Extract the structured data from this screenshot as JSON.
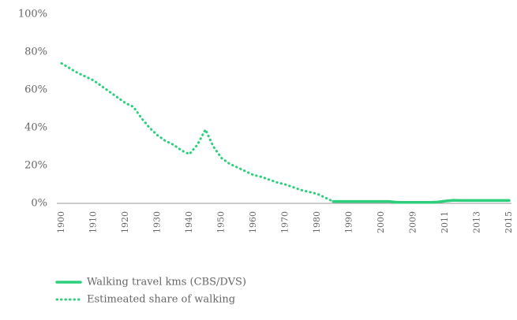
{
  "chart_data": {
    "type": "line",
    "categories": [
      "1900",
      null,
      null,
      null,
      "1910",
      null,
      null,
      null,
      "1920",
      null,
      null,
      null,
      "1930",
      null,
      null,
      null,
      "1940",
      null,
      null,
      null,
      "1950",
      null,
      null,
      null,
      "1960",
      null,
      null,
      null,
      "1970",
      null,
      null,
      null,
      "1980",
      null,
      null,
      null,
      "1990",
      null,
      null,
      null,
      "2000",
      null,
      null,
      null,
      "2009",
      null,
      null,
      null,
      "2011",
      null,
      null,
      null,
      "2013",
      null,
      null,
      null,
      "2015"
    ],
    "series": [
      {
        "name": "Walking travel kms (CBS/DVS)",
        "color": "#2ecf7c",
        "style": "solid",
        "values": [
          null,
          null,
          null,
          null,
          null,
          null,
          null,
          null,
          null,
          null,
          null,
          null,
          null,
          null,
          null,
          null,
          null,
          null,
          null,
          null,
          null,
          null,
          null,
          null,
          null,
          null,
          null,
          null,
          null,
          null,
          null,
          null,
          null,
          null,
          1,
          1,
          1,
          1,
          1,
          1,
          1,
          1,
          0.5,
          0.5,
          0.5,
          0.5,
          0.5,
          0.7,
          1.2,
          1.6,
          1.5,
          1.5,
          1.5,
          1.5,
          1.5,
          1.5,
          1.5
        ]
      },
      {
        "name": "Estimeated share of walking",
        "color": "#2ecf7c",
        "style": "dotted",
        "values": [
          74,
          71.5,
          69,
          67,
          65,
          62,
          59,
          56,
          53,
          51,
          45,
          40,
          36,
          33,
          31,
          28,
          26,
          31,
          39,
          30,
          24,
          21,
          19,
          17,
          15,
          14,
          12.5,
          11,
          10,
          8.5,
          7,
          6,
          5,
          3,
          1,
          null,
          null,
          null,
          null,
          null,
          null,
          null,
          null,
          null,
          null,
          null,
          null,
          null,
          null,
          null,
          null,
          null,
          null,
          null,
          null,
          null,
          null
        ]
      }
    ],
    "ylim": [
      0,
      100
    ],
    "yticks": [
      {
        "value": 0,
        "label": "0%"
      },
      {
        "value": 20,
        "label": "20%"
      },
      {
        "value": 40,
        "label": "40%"
      },
      {
        "value": 60,
        "label": "60%"
      },
      {
        "value": 80,
        "label": "80%"
      },
      {
        "value": 100,
        "label": "100%"
      }
    ],
    "grid": false
  }
}
